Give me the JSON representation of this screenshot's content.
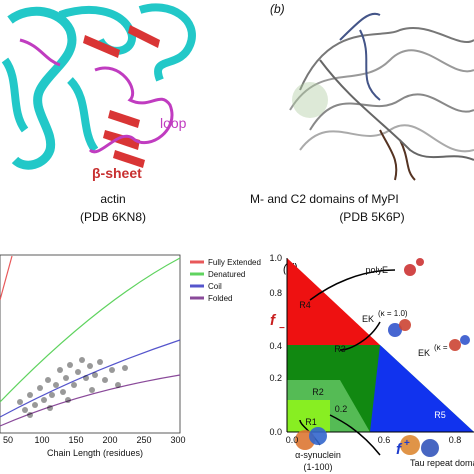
{
  "panels": {
    "a": {
      "labels": {
        "loop": "loop",
        "sheet": "β-sheet"
      },
      "caption": [
        "actin",
        "(PDB 6KN8)"
      ]
    },
    "b": {
      "tag": "(b)",
      "caption": [
        "M- and C2 domains of MyPI",
        "(PDB 5K6P)"
      ]
    },
    "c": {
      "xticks": [
        "50",
        "100",
        "150",
        "200",
        "250",
        "300"
      ],
      "xlabel": "Chain Length (residues)",
      "legend": [
        {
          "name": "Fully Extended",
          "color": "#e8585a"
        },
        {
          "name": "Denatured",
          "color": "#5fd35f"
        },
        {
          "name": "Coil",
          "color": "#5555cc"
        },
        {
          "name": "Folded",
          "color": "#8a4a9a"
        }
      ]
    },
    "d": {
      "tag": "(d)",
      "yticks": [
        "1.0",
        "0.8",
        "0.4",
        "0.2",
        "0.0"
      ],
      "xticks": [
        "0.0",
        "0.2",
        "0.6",
        "0.8"
      ],
      "ylabel": {
        "symbol": "f",
        "sign": "−"
      },
      "xlabel": {
        "symbol": "f",
        "sign": "+"
      },
      "regions": [
        "R1",
        "R2",
        "R3",
        "R4",
        "R5"
      ],
      "annotations": {
        "polyE": "polyE",
        "ek1": {
          "text": "EK",
          "sup": "(κ = 1.0)"
        },
        "ek2": {
          "text": "EK",
          "sup": "(κ ="
        },
        "asyn": [
          "α-synuclein",
          "(1-100)"
        ],
        "tau": "Tau repeat doma"
      }
    }
  }
}
